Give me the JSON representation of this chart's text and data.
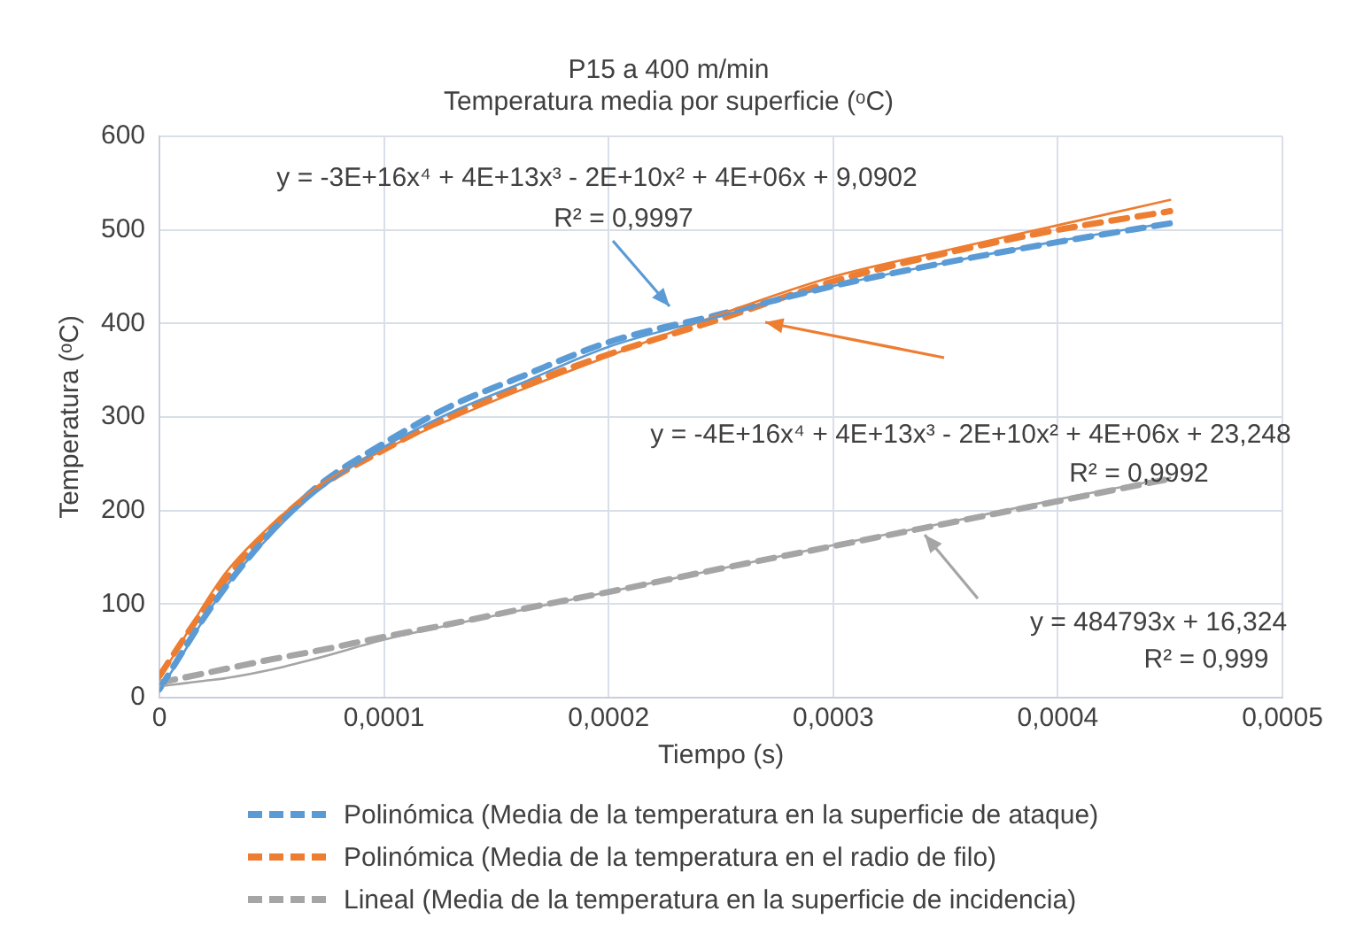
{
  "chart_data": {
    "type": "line",
    "title": "P15 a 400 m/min",
    "subtitle": "Temperatura media por superficie (ᵒC)",
    "xlabel": "Tiempo (s)",
    "ylabel": "Temperatura (ᵒC)",
    "x": [
      0,
      1e-05,
      2e-05,
      3e-05,
      5e-05,
      7e-05,
      0.0001,
      0.00013,
      0.00016,
      0.0002,
      0.00025,
      0.0003,
      0.00035,
      0.0004,
      0.00045
    ],
    "series": [
      {
        "color": "#5b9bd5",
        "line_style": "solid",
        "values": [
          8,
          45,
          85,
          120,
          175,
          220,
          268,
          305,
          335,
          375,
          408,
          440,
          465,
          488,
          508
        ]
      },
      {
        "color": "#ed7d31",
        "line_style": "solid",
        "values": [
          20,
          60,
          100,
          135,
          185,
          225,
          265,
          298,
          328,
          365,
          410,
          450,
          478,
          505,
          532
        ]
      },
      {
        "color": "#a5a5a5",
        "line_style": "solid",
        "values": [
          12,
          15,
          18,
          21,
          30,
          42,
          62,
          78,
          93,
          113,
          138,
          163,
          187,
          212,
          235
        ]
      },
      {
        "name": "Polinómica (Media de la temperatura en la superficie de ataque)",
        "color": "#5b9bd5",
        "line_style": "dashed",
        "values": [
          9,
          48,
          86,
          120,
          178,
          225,
          272,
          312,
          342,
          380,
          410,
          440,
          465,
          487,
          507
        ]
      },
      {
        "name": "Polinómica (Media de la temperatura en el radio de filo)",
        "color": "#ed7d31",
        "line_style": "dashed",
        "values": [
          23,
          60,
          95,
          128,
          182,
          223,
          265,
          302,
          332,
          367,
          405,
          445,
          475,
          500,
          520
        ]
      },
      {
        "name": "Lineal (Media de la temperatura en la superficie de incidencia)",
        "color": "#a5a5a5",
        "line_style": "dashed",
        "values": [
          16,
          21,
          26,
          31,
          41,
          50,
          65,
          79,
          94,
          113,
          138,
          162,
          186,
          210,
          234
        ]
      }
    ],
    "xlim": [
      0,
      0.0005
    ],
    "xticks": [
      0,
      {
        "value": 0.0001,
        "label": "0,0001"
      },
      {
        "value": 0.0002,
        "label": "0,0002"
      },
      {
        "value": 0.0003,
        "label": "0,0003"
      },
      {
        "value": 0.0004,
        "label": "0,0004"
      },
      {
        "value": 0.0005,
        "label": "0,0005"
      }
    ],
    "ylim": [
      0,
      600
    ],
    "yticks": [
      0,
      100,
      200,
      300,
      400,
      500,
      600
    ],
    "grid": true,
    "legend": "bottom",
    "marker": "none",
    "annotations": [
      "y = -3E+16x⁴ + 4E+13x³ - 2E+10x² + 4E+06x + 9,0902\nR² = 0,9997",
      "y = -4E+16x⁴ + 4E+13x³ - 2E+10x² + 4E+06x + 23,248\nR² = 0,9992",
      "y = 484793x + 16,324\nR² = 0,999"
    ]
  }
}
